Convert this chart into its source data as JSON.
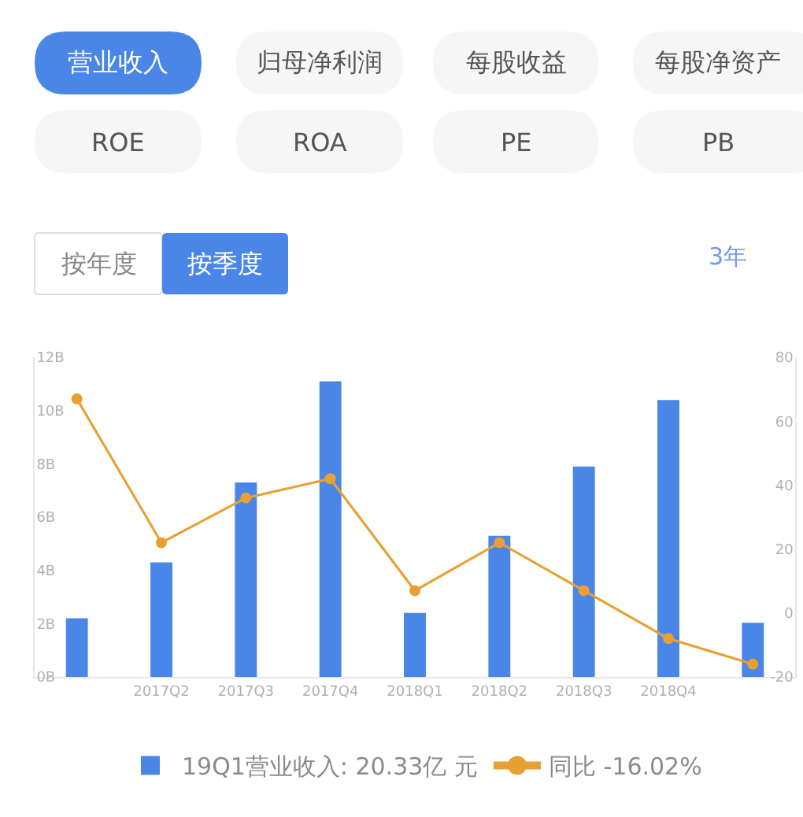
{
  "chart_data": {
    "type": "bar",
    "annotations": [
      "营业收入",
      "归母净利润",
      "每股收益",
      "每股净资产",
      "ROE",
      "ROA",
      "PE",
      "PB",
      "按年度",
      "按季度",
      "3年"
    ],
    "categories": [
      null,
      "2017Q2",
      "2017Q3",
      "2017Q4",
      "2018Q1",
      "2018Q2",
      "2018Q3",
      "2018Q4",
      null
    ],
    "series": [
      {
        "name": "19Q1营业收入: 20.33亿 元",
        "color": "#4a86e8",
        "values": [
          2.2,
          4.3,
          7.3,
          11.1,
          2.4,
          5.3,
          7.9,
          10.4,
          2.033
        ]
      },
      {
        "type": "line",
        "name": "同比 -16.02%",
        "color": "#e8a033",
        "axis": "y2",
        "values": [
          67,
          22,
          36,
          42,
          7,
          22,
          7,
          -8,
          -16.02
        ]
      }
    ],
    "ylim": [
      0,
      12
    ],
    "yticks": [
      {
        "value": 0,
        "label": "0B"
      },
      {
        "value": 2,
        "label": "2B"
      },
      {
        "value": 4,
        "label": "4B"
      },
      {
        "value": 6,
        "label": "6B"
      },
      {
        "value": 8,
        "label": "8B"
      },
      {
        "value": 10,
        "label": "10B"
      },
      {
        "value": 12,
        "label": "12B"
      }
    ],
    "y2lim": [
      -20,
      80
    ],
    "y2ticks": [
      -20,
      0,
      20,
      40,
      60,
      80
    ],
    "marker": "circle",
    "legend": "bottom"
  }
}
